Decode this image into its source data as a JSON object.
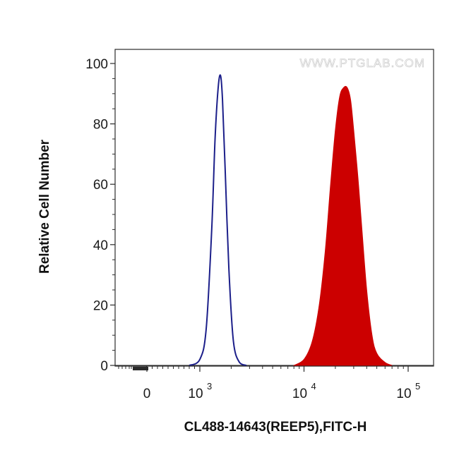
{
  "chart_data": {
    "type": "area",
    "title": "",
    "xlabel": "CL488-14643(REEP5),FITC-H",
    "ylabel": "Relative Cell Number",
    "watermark": "WWW.PTGLAB.COM",
    "x_scale": "biexponential",
    "ylim": [
      0,
      100
    ],
    "y_ticks": [
      "0",
      "20",
      "40",
      "60",
      "80",
      "100"
    ],
    "x_ticks": [
      {
        "value": 0,
        "base": "0",
        "exp": ""
      },
      {
        "value": 1000,
        "base": "10",
        "exp": "3"
      },
      {
        "value": 10000,
        "base": "10",
        "exp": "4"
      },
      {
        "value": 100000,
        "base": "10",
        "exp": "5"
      }
    ],
    "grid": false,
    "series": [
      {
        "style": "outline",
        "color": "#1c1f8a",
        "x": [
          800,
          1000,
          1150,
          1300,
          1400,
          1500,
          1580,
          1650,
          1750,
          1900,
          2100,
          2400,
          2800
        ],
        "y": [
          0,
          2,
          12,
          45,
          75,
          92,
          96,
          88,
          65,
          32,
          8,
          1,
          0
        ]
      },
      {
        "style": "filled",
        "color": "#cc0000",
        "x": [
          8000,
          10000,
          12000,
          14000,
          16000,
          18000,
          20000,
          22000,
          24000,
          26000,
          28000,
          30000,
          33000,
          36000,
          40000,
          45000,
          50000,
          60000,
          70000
        ],
        "y": [
          0,
          2,
          8,
          20,
          38,
          60,
          78,
          89,
          92,
          92,
          88,
          78,
          62,
          45,
          25,
          10,
          4,
          1,
          0
        ]
      }
    ]
  }
}
